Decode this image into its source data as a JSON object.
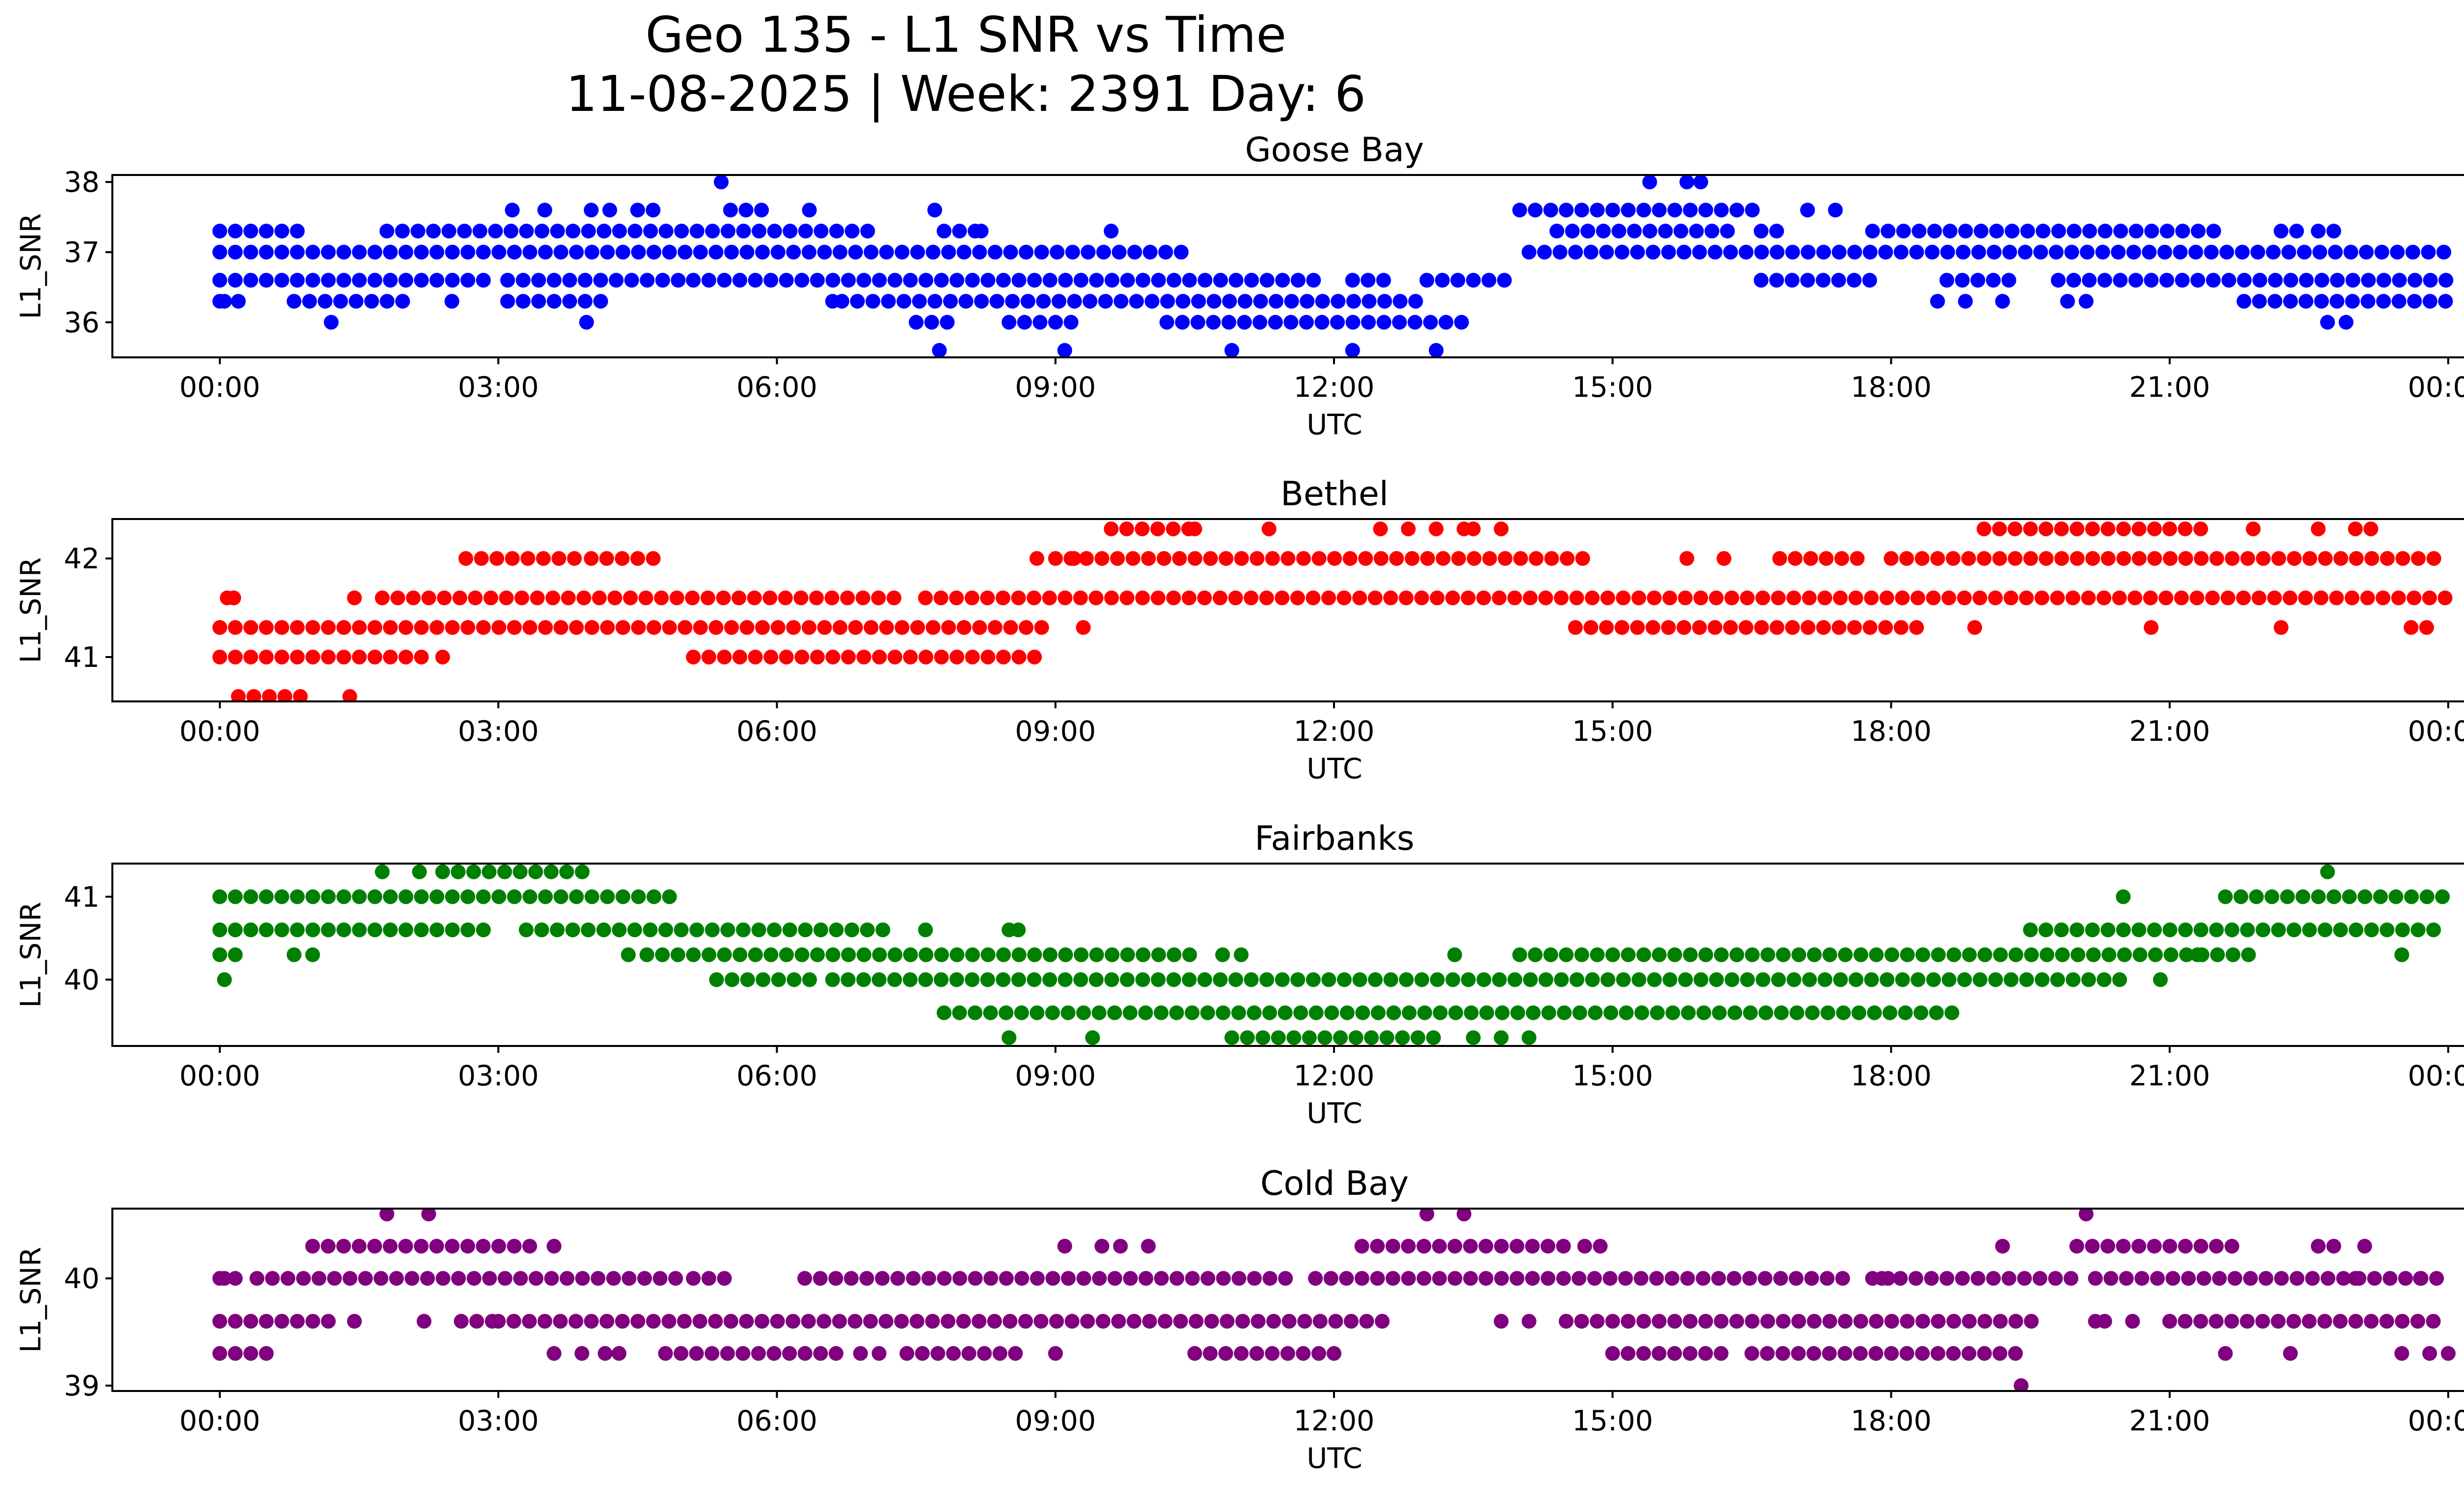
{
  "chart_data": {
    "type": "scatter",
    "title": [
      "Geo 135 - L1 SNR vs Time",
      "11-08-2025 | Week: 2391 Day: 6"
    ],
    "xlabel": "UTC",
    "ylabel": "L1_SNR",
    "x_range_hours": [
      0,
      24
    ],
    "x_ticks": [
      {
        "hour": 0,
        "label": "00:00"
      },
      {
        "hour": 3,
        "label": "03:00"
      },
      {
        "hour": 6,
        "label": "06:00"
      },
      {
        "hour": 9,
        "label": "09:00"
      },
      {
        "hour": 12,
        "label": "12:00"
      },
      {
        "hour": 15,
        "label": "15:00"
      },
      {
        "hour": 18,
        "label": "18:00"
      },
      {
        "hour": 21,
        "label": "21:00"
      },
      {
        "hour": 24,
        "label": "00:00"
      }
    ],
    "panels": [
      {
        "station": "Goose Bay",
        "color": "#0000ff",
        "ylim": [
          35.5,
          38.1
        ],
        "yticks": [
          36,
          37,
          38
        ],
        "segments": [
          {
            "y": 37.0,
            "ranges": [
              [
                0.0,
                10.45
              ],
              [
                14.1,
                24.0
              ]
            ]
          },
          {
            "y": 36.6,
            "ranges": [
              [
                0.0,
                3.0
              ],
              [
                3.1,
                5.0
              ],
              [
                5.1,
                11.9
              ],
              [
                12.2,
                12.7
              ],
              [
                13.0,
                14.0
              ],
              [
                16.6,
                17.8
              ],
              [
                18.6,
                19.4
              ],
              [
                19.8,
                24.0
              ]
            ]
          },
          {
            "y": 36.3,
            "ranges": [
              [
                0.0,
                0.1
              ],
              [
                0.8,
                2.0
              ],
              [
                3.1,
                4.2
              ],
              [
                6.7,
                13.0
              ],
              [
                21.8,
                24.0
              ]
            ]
          },
          {
            "y": 37.3,
            "ranges": [
              [
                0.0,
                1.0
              ],
              [
                1.8,
                7.0
              ],
              [
                7.8,
                8.2
              ],
              [
                14.4,
                16.4
              ],
              [
                16.6,
                16.9
              ],
              [
                17.8,
                21.5
              ],
              [
                22.2,
                22.4
              ],
              [
                22.6,
                22.8
              ]
            ]
          },
          {
            "y": 36.0,
            "ranges": [
              [
                7.5,
                8.0
              ],
              [
                8.5,
                9.3
              ],
              [
                10.2,
                13.5
              ],
              [
                22.7,
                22.8
              ]
            ]
          },
          {
            "y": 37.6,
            "ranges": [
              [
                4.5,
                4.7
              ],
              [
                5.5,
                6.0
              ],
              [
                14.0,
                16.6
              ]
            ]
          }
        ],
        "points": [
          [
            1.2,
            36.0
          ],
          [
            0.05,
            36.3
          ],
          [
            0.2,
            36.3
          ],
          [
            2.5,
            36.3
          ],
          [
            3.15,
            37.6
          ],
          [
            3.5,
            37.6
          ],
          [
            3.95,
            36.0
          ],
          [
            4.0,
            37.6
          ],
          [
            4.2,
            37.6
          ],
          [
            5.4,
            38.0
          ],
          [
            6.35,
            37.6
          ],
          [
            7.7,
            37.6
          ],
          [
            6.6,
            36.3
          ],
          [
            8.2,
            37.3
          ],
          [
            9.6,
            37.3
          ],
          [
            7.75,
            35.6
          ],
          [
            9.1,
            35.6
          ],
          [
            10.9,
            35.6
          ],
          [
            12.2,
            35.6
          ],
          [
            13.1,
            35.6
          ],
          [
            15.4,
            38.0
          ],
          [
            15.8,
            38.0
          ],
          [
            15.95,
            38.0
          ],
          [
            17.1,
            37.6
          ],
          [
            17.4,
            37.6
          ],
          [
            18.5,
            36.3
          ],
          [
            18.8,
            36.3
          ],
          [
            19.2,
            36.3
          ],
          [
            19.9,
            36.3
          ],
          [
            20.1,
            36.3
          ],
          [
            22.9,
            36.0
          ]
        ]
      },
      {
        "station": "Bethel",
        "color": "#ff0000",
        "ylim": [
          40.55,
          42.4
        ],
        "yticks": [
          41,
          42
        ],
        "segments": [
          {
            "y": 41.6,
            "ranges": [
              [
                1.75,
                7.3
              ],
              [
                7.6,
                24.0
              ]
            ]
          },
          {
            "y": 41.3,
            "ranges": [
              [
                0.0,
                9.0
              ],
              [
                14.6,
                18.4
              ],
              [
                23.6,
                23.8
              ]
            ]
          },
          {
            "y": 41.0,
            "ranges": [
              [
                0.0,
                2.3
              ],
              [
                5.1,
                8.9
              ]
            ]
          },
          {
            "y": 42.0,
            "ranges": [
              [
                2.65,
                3.9
              ],
              [
                4.0,
                4.7
              ],
              [
                9.0,
                14.8
              ],
              [
                16.8,
                17.8
              ],
              [
                18.0,
                24.0
              ]
            ]
          },
          {
            "y": 42.3,
            "ranges": [
              [
                9.6,
                10.5
              ],
              [
                10.5,
                10.65
              ],
              [
                19.0,
                21.0
              ],
              [
                21.0,
                21.4
              ],
              [
                23.0,
                23.3
              ]
            ]
          },
          {
            "y": 40.6,
            "ranges": [
              [
                0.2,
                1.0
              ]
            ]
          }
        ],
        "points": [
          [
            0.08,
            41.6
          ],
          [
            0.15,
            41.6
          ],
          [
            1.45,
            41.6
          ],
          [
            2.4,
            41.0
          ],
          [
            1.4,
            40.6
          ],
          [
            9.3,
            41.3
          ],
          [
            8.8,
            42.0
          ],
          [
            9.2,
            42.0
          ],
          [
            11.3,
            42.3
          ],
          [
            12.5,
            42.3
          ],
          [
            12.8,
            42.3
          ],
          [
            13.1,
            42.3
          ],
          [
            13.4,
            42.3
          ],
          [
            13.5,
            42.3
          ],
          [
            13.8,
            42.3
          ],
          [
            15.8,
            42.0
          ],
          [
            16.2,
            42.0
          ],
          [
            18.9,
            41.3
          ],
          [
            20.8,
            41.3
          ],
          [
            22.2,
            41.3
          ],
          [
            21.9,
            42.3
          ],
          [
            22.6,
            42.3
          ]
        ]
      },
      {
        "station": "Fairbanks",
        "color": "#008000",
        "ylim": [
          39.2,
          41.4
        ],
        "yticks": [
          40,
          41
        ],
        "segments": [
          {
            "y": 41.0,
            "ranges": [
              [
                0.0,
                4.95
              ],
              [
                21.6,
                24.0
              ]
            ]
          },
          {
            "y": 40.6,
            "ranges": [
              [
                0.0,
                3.0
              ],
              [
                3.3,
                7.2
              ],
              [
                19.5,
                24.0
              ]
            ]
          },
          {
            "y": 40.3,
            "ranges": [
              [
                0.0,
                0.3
              ],
              [
                4.6,
                10.5
              ],
              [
                14.0,
                22.0
              ]
            ]
          },
          {
            "y": 41.3,
            "ranges": [
              [
                1.75,
                1.9
              ],
              [
                2.15,
                2.3
              ],
              [
                2.4,
                4.0
              ]
            ]
          },
          {
            "y": 40.0,
            "ranges": [
              [
                5.35,
                6.4
              ],
              [
                6.6,
                20.5
              ],
              [
                20.9,
                21.0
              ]
            ]
          },
          {
            "y": 39.6,
            "ranges": [
              [
                7.8,
                18.8
              ]
            ]
          },
          {
            "y": 39.3,
            "ranges": [
              [
                10.9,
                13.1
              ]
            ]
          }
        ],
        "points": [
          [
            0.05,
            40.0
          ],
          [
            0.8,
            40.3
          ],
          [
            1.0,
            40.3
          ],
          [
            4.4,
            40.3
          ],
          [
            7.6,
            40.6
          ],
          [
            8.5,
            40.6
          ],
          [
            8.6,
            40.6
          ],
          [
            8.5,
            39.3
          ],
          [
            9.4,
            39.3
          ],
          [
            10.8,
            40.3
          ],
          [
            11.0,
            40.3
          ],
          [
            13.3,
            40.3
          ],
          [
            13.5,
            39.3
          ],
          [
            13.8,
            39.3
          ],
          [
            14.1,
            39.3
          ],
          [
            20.5,
            41.0
          ],
          [
            21.3,
            40.3
          ],
          [
            22.7,
            41.3
          ],
          [
            23.5,
            40.3
          ]
        ]
      },
      {
        "station": "Cold Bay",
        "color": "#800080",
        "ylim": [
          38.95,
          40.65
        ],
        "yticks": [
          39,
          40
        ],
        "segments": [
          {
            "y": 40.0,
            "ranges": [
              [
                0.0,
                0.2
              ],
              [
                0.4,
                5.0
              ],
              [
                5.1,
                5.6
              ],
              [
                6.3,
                11.5
              ],
              [
                11.8,
                17.5
              ],
              [
                17.8,
                18.0
              ],
              [
                18.1,
                20.0
              ],
              [
                20.2,
                24.0
              ]
            ]
          },
          {
            "y": 39.6,
            "ranges": [
              [
                0.0,
                1.3
              ],
              [
                2.6,
                3.0
              ],
              [
                3.0,
                12.6
              ],
              [
                14.5,
                19.6
              ],
              [
                21.0,
                24.0
              ]
            ]
          },
          {
            "y": 39.3,
            "ranges": [
              [
                0.0,
                0.6
              ],
              [
                4.8,
                6.7
              ],
              [
                7.4,
                8.7
              ],
              [
                10.5,
                11.9
              ],
              [
                15.0,
                16.3
              ],
              [
                16.5,
                19.5
              ]
            ]
          },
          {
            "y": 40.3,
            "ranges": [
              [
                1.0,
                3.4
              ],
              [
                12.3,
                14.6
              ],
              [
                14.7,
                14.9
              ],
              [
                20.0,
                21.8
              ],
              [
                22.6,
                22.8
              ]
            ]
          }
        ],
        "points": [
          [
            0.05,
            40.0
          ],
          [
            1.45,
            39.6
          ],
          [
            2.2,
            39.6
          ],
          [
            3.6,
            40.3
          ],
          [
            3.6,
            39.3
          ],
          [
            3.9,
            39.3
          ],
          [
            4.15,
            39.3
          ],
          [
            4.3,
            39.3
          ],
          [
            6.9,
            39.3
          ],
          [
            7.1,
            39.3
          ],
          [
            9.0,
            39.3
          ],
          [
            9.1,
            40.3
          ],
          [
            9.5,
            40.3
          ],
          [
            9.7,
            40.3
          ],
          [
            10.0,
            40.3
          ],
          [
            12.0,
            39.3
          ],
          [
            1.8,
            40.6
          ],
          [
            2.25,
            40.6
          ],
          [
            13.0,
            40.6
          ],
          [
            13.4,
            40.6
          ],
          [
            13.8,
            39.6
          ],
          [
            14.1,
            39.6
          ],
          [
            17.9,
            40.0
          ],
          [
            19.2,
            40.3
          ],
          [
            19.4,
            39.0
          ],
          [
            20.1,
            40.6
          ],
          [
            20.2,
            39.6
          ],
          [
            20.3,
            39.6
          ],
          [
            20.6,
            39.6
          ],
          [
            21.6,
            39.3
          ],
          [
            22.3,
            39.3
          ],
          [
            23.1,
            40.3
          ],
          [
            23.0,
            40.0
          ],
          [
            23.5,
            39.3
          ],
          [
            23.8,
            39.3
          ],
          [
            24.0,
            39.3
          ],
          [
            23.7,
            40.0
          ]
        ]
      }
    ]
  }
}
